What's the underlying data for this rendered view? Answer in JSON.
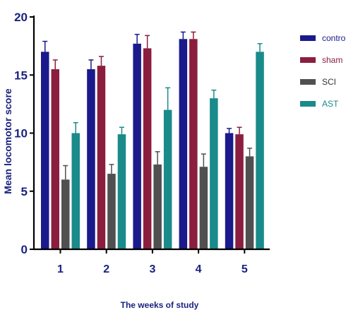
{
  "chart_data": {
    "type": "bar",
    "title": "",
    "xlabel": "The weeks of study",
    "ylabel": "Mean locomotor score",
    "categories": [
      "1",
      "2",
      "3",
      "4",
      "5"
    ],
    "yticks": [
      "0",
      "5",
      "10",
      "15",
      "20"
    ],
    "ylim": [
      0,
      20
    ],
    "grid": false,
    "legend_position": "right",
    "error_bars": true,
    "series": [
      {
        "name": "control",
        "color": "#1a1a8c",
        "label_color": "#1a1a8c",
        "values": [
          17.0,
          15.5,
          17.7,
          18.1,
          10.0
        ],
        "errors": [
          0.9,
          0.8,
          0.8,
          0.6,
          0.4
        ]
      },
      {
        "name": "sham",
        "color": "#8b1e3f",
        "label_color": "#8b1e3f",
        "values": [
          15.5,
          15.8,
          17.3,
          18.1,
          9.9
        ],
        "errors": [
          0.8,
          0.8,
          1.1,
          0.6,
          0.6
        ]
      },
      {
        "name": "SCI",
        "color": "#505050",
        "label_color": "#333333",
        "values": [
          6.0,
          6.5,
          7.3,
          7.1,
          8.0
        ],
        "errors": [
          1.2,
          0.8,
          1.1,
          1.1,
          0.7
        ]
      },
      {
        "name": "AST",
        "color": "#1a8a8a",
        "label_color": "#1a8a8a",
        "values": [
          10.0,
          9.9,
          12.0,
          13.0,
          17.0
        ],
        "errors": [
          0.9,
          0.6,
          1.9,
          0.7,
          0.7
        ]
      }
    ]
  }
}
